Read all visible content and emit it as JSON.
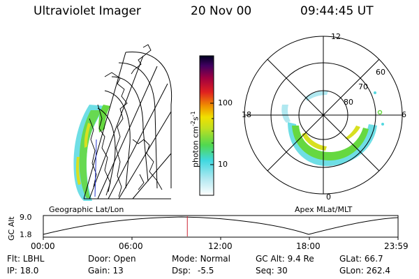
{
  "header": {
    "instrument": "Ultraviolet Imager",
    "date": "20 Nov 00",
    "time": "09:44:45 UT"
  },
  "colorbar": {
    "label": "photon cm",
    "label_exp1": "-2",
    "label_mid": "s",
    "label_exp2": "-1",
    "ticks": [
      "100",
      "10"
    ]
  },
  "polar": {
    "mlt_labels": [
      "12",
      "18",
      "6",
      "0"
    ],
    "mlat_labels": [
      "60",
      "70",
      "80"
    ]
  },
  "projection_labels": {
    "left": "Geographic Lat/Lon",
    "right": "Apex MLat/MLT"
  },
  "altitude_plot": {
    "ylabel": "GC Alt",
    "y_ticks": [
      "9.0",
      "1.8"
    ],
    "x_ticks": [
      "00:00",
      "06:00",
      "12:00",
      "18:00",
      "23:59"
    ],
    "current_time_fraction": 0.406
  },
  "status": {
    "row1": [
      {
        "key": "Flt:",
        "value": "LBHL"
      },
      {
        "key": "Door:",
        "value": "Open"
      },
      {
        "key": "Mode:",
        "value": "Normal"
      },
      {
        "key": "GC Alt:",
        "value": "9.4 Re"
      },
      {
        "key": "GLat:",
        "value": "66.7"
      }
    ],
    "row2": [
      {
        "key": "IP:",
        "value": "18.0"
      },
      {
        "key": "Gain:",
        "value": "13"
      },
      {
        "key": "Dsp:",
        "value": "-5.5"
      },
      {
        "key": "Seq:",
        "value": "30"
      },
      {
        "key": "GLon:",
        "value": "262.4"
      }
    ]
  },
  "colors": {
    "marker": "#cc2233",
    "aurora_low": "#55d8e0",
    "aurora_mid": "#66d840",
    "aurora_high": "#d8e020"
  }
}
